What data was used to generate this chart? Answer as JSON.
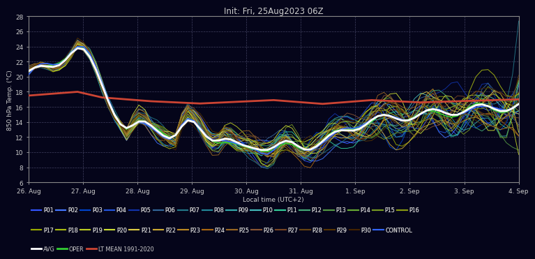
{
  "title": "Init: Fri, 25Aug2023 06Z",
  "ylabel": "850 hPa Temp. (°C)",
  "xlabel": "Local time (UTC+2)",
  "ylim": [
    6,
    28
  ],
  "yticks": [
    6,
    8,
    10,
    12,
    14,
    16,
    18,
    20,
    22,
    24,
    26,
    28
  ],
  "xtick_labels": [
    "26. Aug",
    "27. Aug",
    "28. Aug",
    "29. Aug",
    "30. Aug",
    "31. Aug",
    "1. Sep",
    "2. Sep",
    "3. Sep",
    "4. Sep"
  ],
  "bg_color": "#05051a",
  "plot_bg": "#05051a",
  "grid_color": "#404060",
  "text_color": "#cccccc",
  "n_steps": 81,
  "avg_color": "#ffffff",
  "ltmean_color": "#cc4433",
  "control_color": "#3366ff",
  "oper_color": "#33cc33",
  "member_colors": [
    "#3355ff",
    "#4477ff",
    "#0044cc",
    "#2255dd",
    "#1133aa",
    "#336699",
    "#227788",
    "#228899",
    "#33aaaa",
    "#44bbbb",
    "#33cc99",
    "#44aa77",
    "#559944",
    "#66aa33",
    "#779922",
    "#889911",
    "#99aa00",
    "#aabb11",
    "#bbcc22",
    "#ccdd33",
    "#ddcc44",
    "#ccaa33",
    "#bb8822",
    "#aa6611",
    "#996622",
    "#885533",
    "#774422",
    "#664411",
    "#553300",
    "#442200"
  ],
  "legend_member_colors": [
    "#3355ff",
    "#4477ff",
    "#0044cc",
    "#2255dd",
    "#1133aa",
    "#336699",
    "#227788",
    "#228899",
    "#33aaaa",
    "#44bbbb",
    "#33cc99",
    "#44aa77",
    "#559944",
    "#66aa33",
    "#779922",
    "#889911",
    "#99aa00",
    "#aabb11",
    "#bbcc22",
    "#ccdd33",
    "#ddcc44",
    "#ccaa33",
    "#bb8822",
    "#aa6611",
    "#996622",
    "#885533",
    "#774422",
    "#664411",
    "#553300",
    "#442200"
  ]
}
